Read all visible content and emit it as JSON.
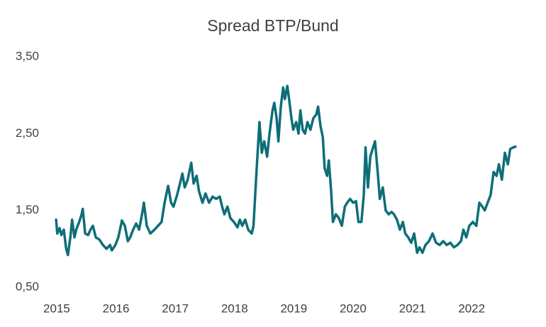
{
  "chart_data": {
    "type": "line",
    "title": "Spread BTP/Bund",
    "x": [
      2014.99,
      2015.01,
      2015.05,
      2015.08,
      2015.12,
      2015.16,
      2015.19,
      2015.23,
      2015.26,
      2015.3,
      2015.33,
      2015.38,
      2015.42,
      2015.44,
      2015.48,
      2015.53,
      2015.57,
      2015.61,
      2015.66,
      2015.72,
      2015.78,
      2015.84,
      2015.9,
      2015.93,
      2015.99,
      2016.04,
      2016.1,
      2016.15,
      2016.2,
      2016.24,
      2016.29,
      2016.34,
      2016.39,
      2016.44,
      2016.47,
      2016.52,
      2016.58,
      2016.65,
      2016.71,
      2016.77,
      2016.82,
      2016.88,
      2016.93,
      2016.97,
      2017.03,
      2017.08,
      2017.12,
      2017.16,
      2017.21,
      2017.27,
      2017.31,
      2017.36,
      2017.4,
      2017.46,
      2017.51,
      2017.57,
      2017.63,
      2017.69,
      2017.75,
      2017.79,
      2017.83,
      2017.88,
      2017.93,
      2017.99,
      2018.05,
      2018.09,
      2018.13,
      2018.18,
      2018.23,
      2018.29,
      2018.32,
      2018.37,
      2018.42,
      2018.46,
      2018.5,
      2018.55,
      2018.59,
      2018.64,
      2018.67,
      2018.71,
      2018.74,
      2018.78,
      2018.82,
      2018.85,
      2018.89,
      2018.92,
      2018.96,
      2018.99,
      2019.04,
      2019.08,
      2019.11,
      2019.15,
      2019.19,
      2019.23,
      2019.28,
      2019.33,
      2019.38,
      2019.41,
      2019.45,
      2019.49,
      2019.52,
      2019.56,
      2019.59,
      2019.63,
      2019.66,
      2019.71,
      2019.76,
      2019.81,
      2019.86,
      2019.9,
      2019.95,
      2020.0,
      2020.05,
      2020.09,
      2020.14,
      2020.18,
      2020.21,
      2020.25,
      2020.29,
      2020.33,
      2020.37,
      2020.42,
      2020.45,
      2020.5,
      2020.55,
      2020.6,
      2020.65,
      2020.69,
      2020.74,
      2020.79,
      2020.84,
      2020.88,
      2020.93,
      2020.98,
      2021.03,
      2021.08,
      2021.12,
      2021.17,
      2021.22,
      2021.28,
      2021.34,
      2021.4,
      2021.46,
      2021.52,
      2021.58,
      2021.64,
      2021.7,
      2021.76,
      2021.82,
      2021.86,
      2021.91,
      2021.96,
      2022.02,
      2022.08,
      2022.13,
      2022.18,
      2022.22,
      2022.27,
      2022.32,
      2022.37,
      2022.42,
      2022.46,
      2022.51,
      2022.56,
      2022.61,
      2022.65,
      2022.7,
      2022.74
    ],
    "series": [
      {
        "color": "#0e6e78",
        "values": [
          1.38,
          1.2,
          1.27,
          1.18,
          1.25,
          1.0,
          0.92,
          1.15,
          1.38,
          1.15,
          1.25,
          1.35,
          1.45,
          1.52,
          1.2,
          1.18,
          1.25,
          1.3,
          1.15,
          1.12,
          1.05,
          1.0,
          1.05,
          0.98,
          1.05,
          1.15,
          1.37,
          1.3,
          1.1,
          1.15,
          1.25,
          1.33,
          1.25,
          1.45,
          1.6,
          1.3,
          1.2,
          1.25,
          1.3,
          1.35,
          1.6,
          1.82,
          1.6,
          1.55,
          1.7,
          1.85,
          1.98,
          1.8,
          1.9,
          2.12,
          1.85,
          1.95,
          1.75,
          1.6,
          1.72,
          1.6,
          1.68,
          1.65,
          1.68,
          1.55,
          1.45,
          1.55,
          1.4,
          1.35,
          1.28,
          1.38,
          1.3,
          1.38,
          1.25,
          1.2,
          1.3,
          2.0,
          2.65,
          2.25,
          2.4,
          2.2,
          2.5,
          2.8,
          2.9,
          2.7,
          2.4,
          2.85,
          3.1,
          2.95,
          3.12,
          2.95,
          2.7,
          2.55,
          2.65,
          2.5,
          2.8,
          2.55,
          2.5,
          2.65,
          2.55,
          2.7,
          2.75,
          2.85,
          2.6,
          2.45,
          2.05,
          1.95,
          2.15,
          1.75,
          1.35,
          1.45,
          1.4,
          1.3,
          1.55,
          1.6,
          1.65,
          1.6,
          1.62,
          1.35,
          1.35,
          1.7,
          2.32,
          1.8,
          2.2,
          2.3,
          2.4,
          1.95,
          1.65,
          1.8,
          1.5,
          1.45,
          1.48,
          1.45,
          1.38,
          1.25,
          1.35,
          1.2,
          1.15,
          1.08,
          1.2,
          0.95,
          1.02,
          0.95,
          1.05,
          1.1,
          1.2,
          1.08,
          1.05,
          1.1,
          1.05,
          1.08,
          1.02,
          1.05,
          1.1,
          1.25,
          1.15,
          1.3,
          1.35,
          1.3,
          1.6,
          1.55,
          1.5,
          1.6,
          1.7,
          2.0,
          1.95,
          2.1,
          1.9,
          2.25,
          2.1,
          2.3,
          2.32,
          2.33
        ]
      }
    ],
    "xlim": [
      2014.9,
      2022.9
    ],
    "xticks": [
      2015,
      2016,
      2017,
      2018,
      2019,
      2020,
      2021,
      2022
    ],
    "ylim": [
      0.5,
      3.5
    ],
    "yticks": [
      {
        "value": 0.5,
        "label": "0,50"
      },
      {
        "value": 1.5,
        "label": "1,50"
      },
      {
        "value": 2.5,
        "label": "2,50"
      },
      {
        "value": 3.5,
        "label": "3,50"
      }
    ],
    "grid": false
  }
}
